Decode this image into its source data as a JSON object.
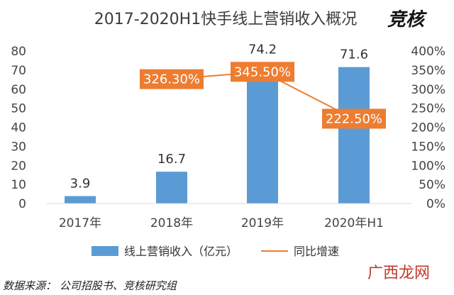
{
  "chart_data": {
    "type": "bar",
    "title": "2017-2020H1快手线上营销收入概况",
    "brand": "竞核",
    "categories": [
      "2017年",
      "2018年",
      "2019年",
      "2020年H1"
    ],
    "series": [
      {
        "name": "线上营销收入（亿元）",
        "type": "bar",
        "axis": "left",
        "color": "#5b9bd5",
        "values": [
          3.9,
          16.7,
          74.2,
          71.6
        ],
        "labels": [
          "3.9",
          "16.7",
          "74.2",
          "71.6"
        ]
      },
      {
        "name": "同比增速",
        "type": "line",
        "axis": "right",
        "color": "#ed7d31",
        "values": [
          null,
          326.3,
          345.5,
          222.5
        ],
        "labels": [
          "",
          "326.30%",
          "345.50%",
          "222.50%"
        ]
      }
    ],
    "y_left": {
      "min": 0,
      "max": 80,
      "ticks": [
        "0",
        "10",
        "20",
        "30",
        "40",
        "50",
        "60",
        "70",
        "80"
      ]
    },
    "y_right": {
      "min": 0,
      "max": 400,
      "ticks": [
        "0%",
        "50%",
        "100%",
        "150%",
        "200%",
        "250%",
        "300%",
        "350%",
        "400%"
      ]
    },
    "grid": false,
    "legend_position": "bottom",
    "source": "数据来源： 公司招股书、竞核研究组"
  },
  "watermark": "广西龙网",
  "colors": {
    "bar": "#5b9bd5",
    "line": "#ed7d31",
    "label_box": "#ed7d31"
  }
}
